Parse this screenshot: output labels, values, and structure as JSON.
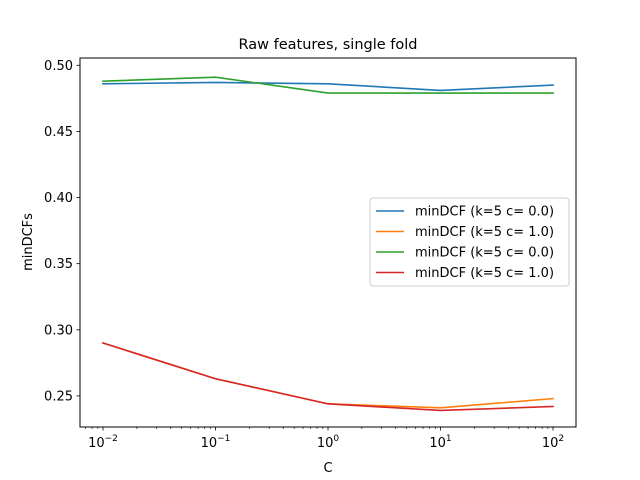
{
  "chart_data": {
    "type": "line",
    "title": "Raw features, single fold",
    "xlabel": "C",
    "ylabel": "minDCFs",
    "xscale": "log",
    "x": [
      0.01,
      0.1,
      1,
      10,
      100
    ],
    "xticks": [
      {
        "base": "10",
        "exp": "−2"
      },
      {
        "base": "10",
        "exp": "−1"
      },
      {
        "base": "10",
        "exp": "0"
      },
      {
        "base": "10",
        "exp": "1"
      },
      {
        "base": "10",
        "exp": "2"
      }
    ],
    "ylim": [
      0.2265,
      0.5055
    ],
    "yticks": [
      "0.25",
      "0.30",
      "0.35",
      "0.40",
      "0.45",
      "0.50"
    ],
    "grid": false,
    "legend_position": "center-right",
    "series": [
      {
        "name": "minDCF (k=5 c= 0.0)",
        "color": "#1f77b4",
        "values": [
          0.486,
          0.487,
          0.486,
          0.481,
          0.485
        ]
      },
      {
        "name": "minDCF (k=5 c= 1.0)",
        "color": "#ff7f0e",
        "values": [
          0.29,
          0.263,
          0.244,
          0.241,
          0.248
        ]
      },
      {
        "name": "minDCF (k=5 c= 0.0)",
        "color": "#2ca02c",
        "values": [
          0.488,
          0.491,
          0.479,
          0.479,
          0.479
        ]
      },
      {
        "name": "minDCF (k=5 c= 1.0)",
        "color": "#d62728",
        "values": [
          0.29,
          0.263,
          0.244,
          0.239,
          0.242
        ]
      }
    ]
  }
}
